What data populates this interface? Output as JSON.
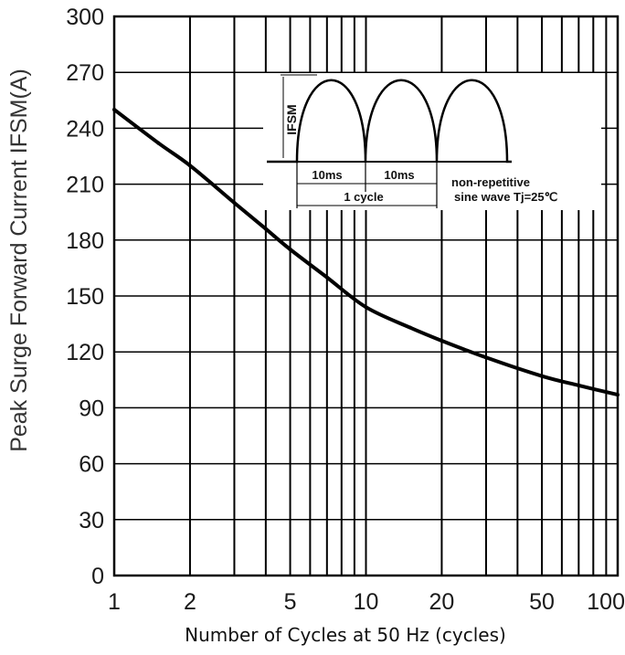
{
  "chart_data": {
    "type": "line",
    "xscale": "log",
    "xlim": [
      1,
      100
    ],
    "ylim": [
      0,
      300
    ],
    "grid": true,
    "xlabel": "Number of Cycles at 50 Hz (cycles)",
    "ylabel": "Peak Surge Forward Current IFSM(A)",
    "x_ticks": [
      1,
      2,
      5,
      10,
      20,
      50,
      100
    ],
    "x_tick_labels": [
      "1",
      "2",
      "5",
      "10",
      "20",
      "50",
      "100"
    ],
    "y_ticks": [
      0,
      30,
      60,
      90,
      120,
      150,
      180,
      210,
      240,
      270,
      300
    ],
    "y_tick_labels": [
      "0",
      "30",
      "60",
      "90",
      "120",
      "150",
      "180",
      "210",
      "240",
      "270",
      "300"
    ],
    "series": [
      {
        "x": [
          1,
          1.5,
          2,
          3,
          4,
          5,
          7,
          10,
          15,
          20,
          30,
          50,
          70,
          100
        ],
        "y": [
          250,
          232,
          220,
          200,
          186,
          175,
          160,
          144,
          133,
          126,
          117,
          107,
          102,
          97
        ]
      }
    ],
    "inset": {
      "y_label": "IFSM",
      "interval_1": "10ms",
      "interval_2": "10ms",
      "span_label": "1 cycle",
      "note_line1": "non-repetitive",
      "note_line2": "sine wave  Tj=25℃"
    }
  }
}
